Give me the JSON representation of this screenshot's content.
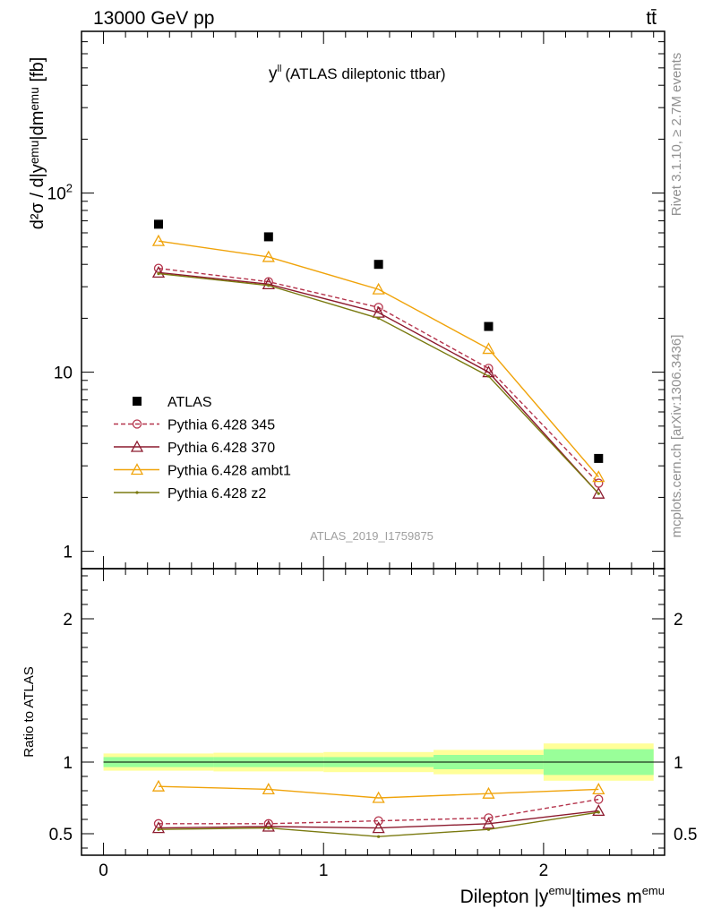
{
  "header": {
    "beam": "13000 GeV pp",
    "process": "tt̄"
  },
  "side": {
    "rivet": "Rivet 3.1.10, ≥ 2.7M events",
    "source": "mcplots.cern.ch [arXiv:1306.3436]"
  },
  "chart_data": [
    {
      "type": "scatter",
      "title": "(ATLAS dileptonic ttbar)",
      "title_var": "y",
      "title_sup": "ll",
      "ylabel": "d²σ / d|yᵉᵐᵘ|dmᵉᵐᵘ [fb]",
      "yscale": "log",
      "ylim": [
        0.8,
        800
      ],
      "xlim": [
        -0.1,
        2.55
      ],
      "ytick_labels": [
        "1",
        "10",
        "10²"
      ],
      "watermark": "ATLAS_2019_I1759875",
      "x": [
        0.25,
        0.75,
        1.25,
        1.75,
        2.25
      ],
      "x_edges": [
        0,
        0.5,
        1.0,
        1.5,
        2.0,
        2.5
      ],
      "series": [
        {
          "name": "ATLAS",
          "color": "#000000",
          "marker": "square",
          "values": [
            67,
            57,
            40,
            18,
            3.3
          ]
        },
        {
          "name": "Pythia 6.428 345",
          "color": "#b5344c",
          "marker": "circle",
          "dash": true,
          "values": [
            38,
            32,
            23,
            10.5,
            2.4
          ]
        },
        {
          "name": "Pythia 6.428 370",
          "color": "#8c1a2e",
          "marker": "triangle",
          "values": [
            36,
            31,
            21.5,
            10,
            2.1
          ]
        },
        {
          "name": "Pythia 6.428 ambt1",
          "color": "#f0a30a",
          "marker": "triangle",
          "values": [
            54,
            44,
            29,
            13.5,
            2.6
          ]
        },
        {
          "name": "Pythia 6.428 z2",
          "color": "#7a7a10",
          "marker": "dot",
          "values": [
            35.5,
            30.5,
            20,
            9.5,
            2.1
          ]
        }
      ]
    },
    {
      "type": "scatter",
      "ylabel": "Ratio to ATLAS",
      "xlabel": "Dilepton |y^emu|times m^emu",
      "xlabel_parts": [
        "Dilepton |y",
        "emu",
        "|times m",
        "emu"
      ],
      "ylim": [
        0.35,
        2.35
      ],
      "xlim": [
        -0.1,
        2.55
      ],
      "ytick_labels": [
        "0.5",
        "1",
        "2"
      ],
      "xtick_labels": [
        "0",
        "1",
        "2"
      ],
      "band_inner": [
        0.035,
        0.035,
        0.035,
        0.05,
        0.09
      ],
      "band_outer": [
        0.06,
        0.065,
        0.07,
        0.085,
        0.13
      ],
      "series": [
        {
          "name": "Pythia 6.428 345",
          "values": [
            0.57,
            0.57,
            0.59,
            0.61,
            0.74
          ]
        },
        {
          "name": "Pythia 6.428 370",
          "values": [
            0.54,
            0.55,
            0.54,
            0.57,
            0.66
          ]
        },
        {
          "name": "Pythia 6.428 ambt1",
          "values": [
            0.83,
            0.81,
            0.75,
            0.78,
            0.81
          ]
        },
        {
          "name": "Pythia 6.428 z2",
          "values": [
            0.53,
            0.54,
            0.48,
            0.53,
            0.65
          ]
        }
      ]
    }
  ]
}
